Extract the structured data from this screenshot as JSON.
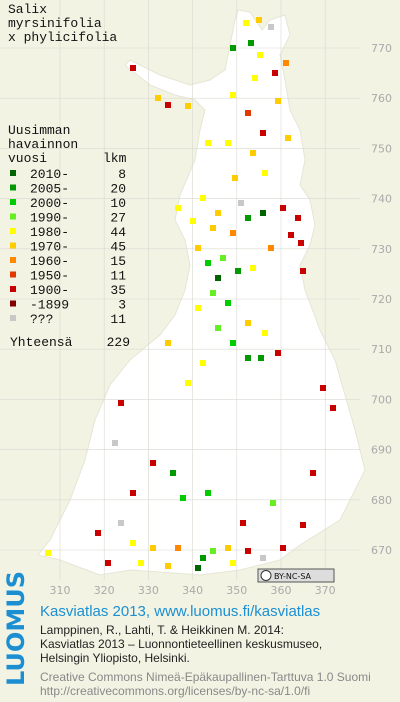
{
  "title": [
    "Salix",
    "myrsinifolia",
    "x phylicifolia"
  ],
  "legend": {
    "heading": [
      "Uusimman",
      "havainnon"
    ],
    "columns": [
      "vuosi",
      "lkm"
    ],
    "rows": [
      {
        "period": "2010-",
        "count": 8,
        "color": "#006400"
      },
      {
        "period": "2005-",
        "count": 20,
        "color": "#009a00"
      },
      {
        "period": "2000-",
        "count": 10,
        "color": "#00cc00"
      },
      {
        "period": "1990-",
        "count": 27,
        "color": "#66ee22"
      },
      {
        "period": "1980-",
        "count": 44,
        "color": "#ffff00"
      },
      {
        "period": "1970-",
        "count": 45,
        "color": "#ffcc00"
      },
      {
        "period": "1960-",
        "count": 15,
        "color": "#ff8800"
      },
      {
        "period": "1950-",
        "count": 11,
        "color": "#e03a00"
      },
      {
        "period": "1900-",
        "count": 35,
        "color": "#c80000"
      },
      {
        "period": "-1899",
        "count": 3,
        "color": "#800000"
      },
      {
        "period": "???",
        "count": 11,
        "color": "#c8c8c8"
      }
    ],
    "total_label": "Yhteensä",
    "total_count": 229
  },
  "axes": {
    "x_labels": [
      310,
      320,
      330,
      340,
      350,
      360,
      370
    ],
    "y_labels": [
      770,
      760,
      750,
      740,
      730,
      720,
      710,
      700,
      690,
      680,
      670
    ]
  },
  "license_badge": "BY-NC-SA",
  "footer": {
    "logo": "LUOMUS",
    "headline": "Kasviatlas 2013, www.luomus.fi/kasviatlas",
    "citation": [
      "Lamppinen, R., Lahti, T. & Heikkinen M. 2014:",
      "Kasviatlas 2013 – Luonnontieteellinen keskusmuseo,",
      "Helsingin Yliopisto, Helsinki."
    ],
    "license": [
      "Creative Commons Nimeä-Epäkaupallinen-Tarttuva 1.0 Suomi",
      "http://creativecommons.org/licenses/by-nc-sa/1.0/fi"
    ]
  }
}
